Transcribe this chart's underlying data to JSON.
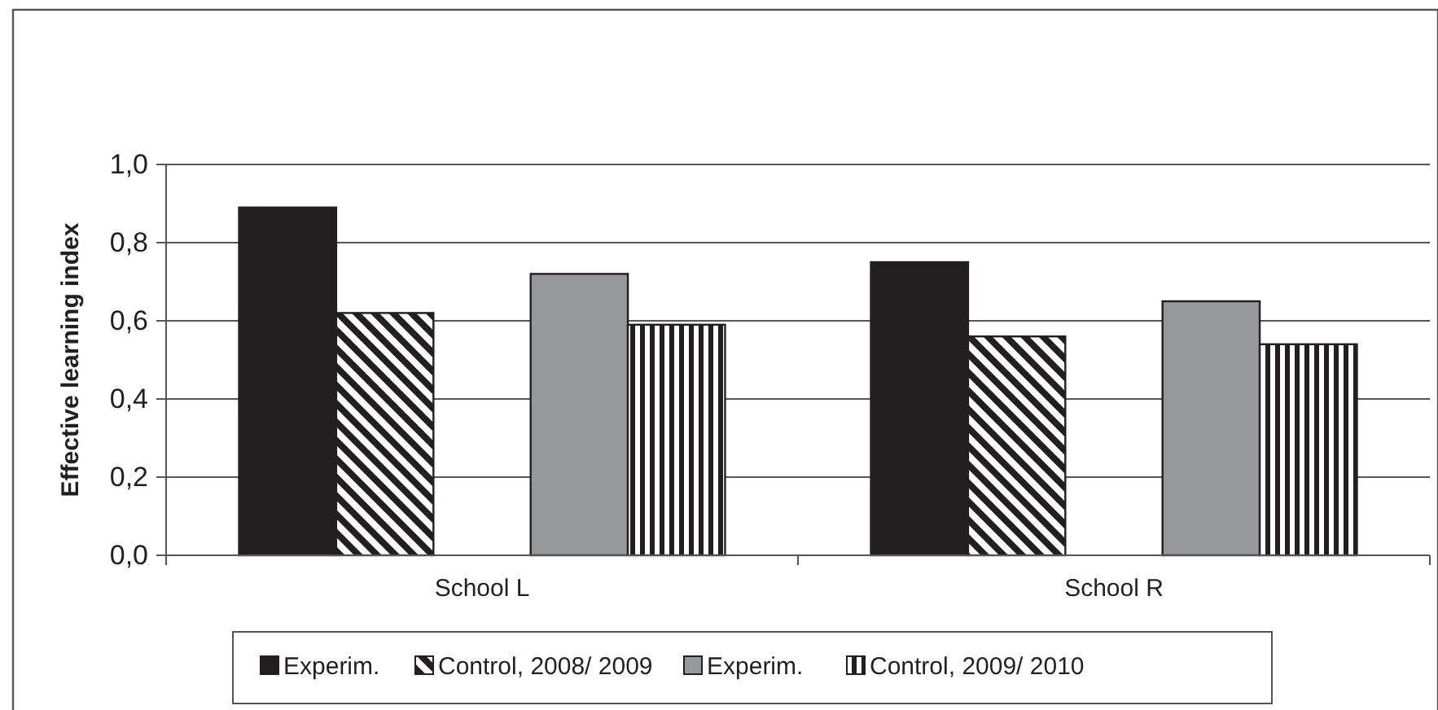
{
  "chart_data": {
    "type": "bar",
    "ylabel": "Effective learning index",
    "categories": [
      "School L",
      "School R"
    ],
    "series": [
      {
        "name": "Experim.",
        "color": "#231f20",
        "values": [
          0.89,
          0.75
        ]
      },
      {
        "name": "Control, 2008/ 2009",
        "color": "#231f20",
        "values": [
          0.62,
          0.56
        ]
      },
      {
        "name": "Experim.",
        "color": "#97989b",
        "values": [
          0.72,
          0.65
        ]
      },
      {
        "name": "Control, 2009/ 2010",
        "color": "#231f20",
        "values": [
          0.59,
          0.54
        ]
      }
    ],
    "ylim": [
      0,
      1
    ],
    "yticks": [
      {
        "value": 0,
        "label": "0,0"
      },
      {
        "value": 0.2,
        "label": "0,2"
      },
      {
        "value": 0.4,
        "label": "0,4"
      },
      {
        "value": 0.6,
        "label": "0,6"
      },
      {
        "value": 0.8,
        "label": "0,8"
      },
      {
        "value": 1,
        "label": "1,0"
      }
    ],
    "grid": "y",
    "legend": "bottom"
  }
}
